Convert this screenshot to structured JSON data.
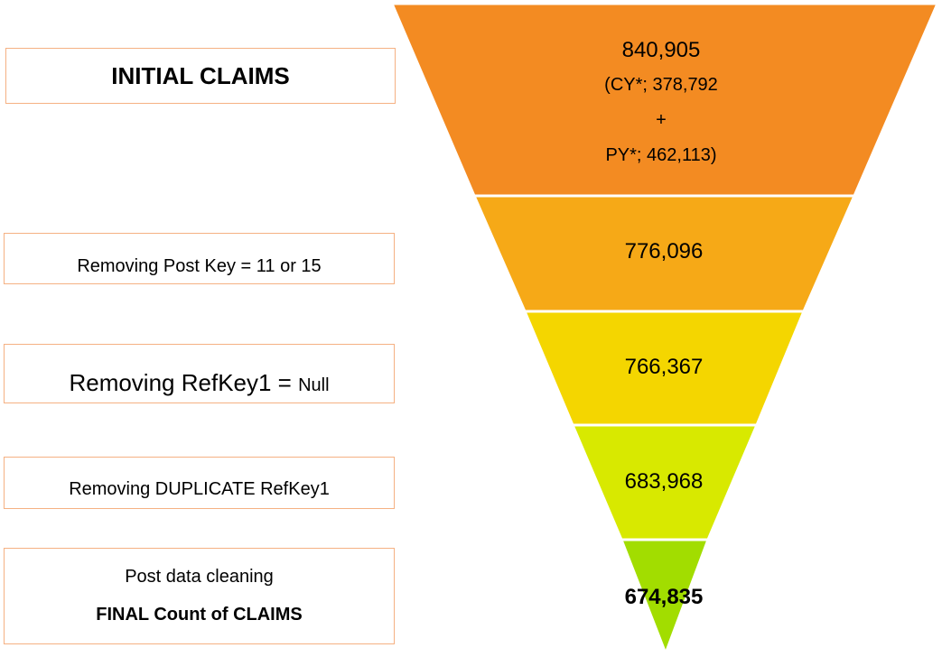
{
  "labels": {
    "initial": "INITIAL CLAIMS",
    "post_key": "Removing Post Key = 11 or 15",
    "refkey_main": "Removing RefKey1 = ",
    "refkey_null": "Null",
    "duplicate": "Removing DUPLICATE RefKey1",
    "post_cleaning": "Post data cleaning",
    "final": "FINAL Count of CLAIMS"
  },
  "funnel": {
    "stages": [
      {
        "value": "840,905",
        "color": "#f38b22",
        "breakdown": [
          "(CY*; 378,792",
          "+",
          "PY*; 462,113)"
        ]
      },
      {
        "value": "776,096",
        "color": "#f6a917"
      },
      {
        "value": "766,367",
        "color": "#f4d600"
      },
      {
        "value": "683,968",
        "color": "#d8e900"
      },
      {
        "value": "674,835",
        "color": "#a2dd00"
      }
    ]
  }
}
